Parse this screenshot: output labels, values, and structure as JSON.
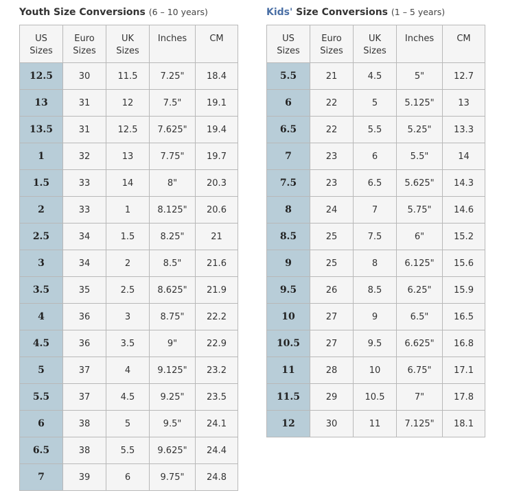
{
  "youth": {
    "title": "Youth Size Conversions",
    "age_range": "(6 – 10 years)",
    "headers": [
      "US Sizes",
      "Euro Sizes",
      "UK Sizes",
      "Inches",
      "CM"
    ],
    "rows": [
      [
        "12.5",
        "30",
        "11.5",
        "7.25\"",
        "18.4"
      ],
      [
        "13",
        "31",
        "12",
        "7.5\"",
        "19.1"
      ],
      [
        "13.5",
        "31",
        "12.5",
        "7.625\"",
        "19.4"
      ],
      [
        "1",
        "32",
        "13",
        "7.75\"",
        "19.7"
      ],
      [
        "1.5",
        "33",
        "14",
        "8\"",
        "20.3"
      ],
      [
        "2",
        "33",
        "1",
        "8.125\"",
        "20.6"
      ],
      [
        "2.5",
        "34",
        "1.5",
        "8.25\"",
        "21"
      ],
      [
        "3",
        "34",
        "2",
        "8.5\"",
        "21.6"
      ],
      [
        "3.5",
        "35",
        "2.5",
        "8.625\"",
        "21.9"
      ],
      [
        "4",
        "36",
        "3",
        "8.75\"",
        "22.2"
      ],
      [
        "4.5",
        "36",
        "3.5",
        "9\"",
        "22.9"
      ],
      [
        "5",
        "37",
        "4",
        "9.125\"",
        "23.2"
      ],
      [
        "5.5",
        "37",
        "4.5",
        "9.25\"",
        "23.5"
      ],
      [
        "6",
        "38",
        "5",
        "9.5\"",
        "24.1"
      ],
      [
        "6.5",
        "38",
        "5.5",
        "9.625\"",
        "24.4"
      ],
      [
        "7",
        "39",
        "6",
        "9.75\"",
        "24.8"
      ]
    ]
  },
  "kids": {
    "title_kids": "Kids'",
    "title_rest": "Size Conversions",
    "age_range": "(1 – 5 years)",
    "headers": [
      "US Sizes",
      "Euro Sizes",
      "UK Sizes",
      "Inches",
      "CM"
    ],
    "rows": [
      [
        "5.5",
        "21",
        "4.5",
        "5\"",
        "12.7"
      ],
      [
        "6",
        "22",
        "5",
        "5.125\"",
        "13"
      ],
      [
        "6.5",
        "22",
        "5.5",
        "5.25\"",
        "13.3"
      ],
      [
        "7",
        "23",
        "6",
        "5.5\"",
        "14"
      ],
      [
        "7.5",
        "23",
        "6.5",
        "5.625\"",
        "14.3"
      ],
      [
        "8",
        "24",
        "7",
        "5.75\"",
        "14.6"
      ],
      [
        "8.5",
        "25",
        "7.5",
        "6\"",
        "15.2"
      ],
      [
        "9",
        "25",
        "8",
        "6.125\"",
        "15.6"
      ],
      [
        "9.5",
        "26",
        "8.5",
        "6.25\"",
        "15.9"
      ],
      [
        "10",
        "27",
        "9",
        "6.5\"",
        "16.5"
      ],
      [
        "10.5",
        "27",
        "9.5",
        "6.625\"",
        "16.8"
      ],
      [
        "11",
        "28",
        "10",
        "6.75\"",
        "17.1"
      ],
      [
        "11.5",
        "29",
        "10.5",
        "7\"",
        "17.8"
      ],
      [
        "12",
        "30",
        "11",
        "7.125\"",
        "18.1"
      ]
    ]
  },
  "colors": {
    "us_column_bg": "#b8cdd8",
    "cell_bg": "#f5f5f5",
    "border": "#b8b8b8",
    "kids_title_accent": "#4a6fa5"
  }
}
